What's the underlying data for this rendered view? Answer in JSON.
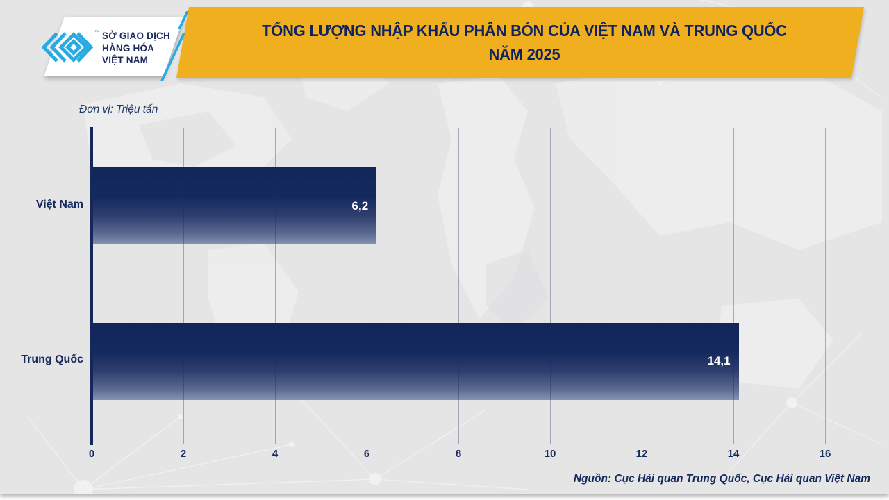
{
  "header": {
    "title_line1": "TỔNG LƯỢNG NHẬP KHẨU PHÂN BÓN CỦA VIỆT NAM VÀ TRUNG QUỐC",
    "title_line2": "NĂM 2025",
    "logo": {
      "tm": "™",
      "org_line1": "SỞ GIAO DỊCH",
      "org_line2": "HÀNG HÓA",
      "org_line3": "VIỆT NAM"
    }
  },
  "chart_data": {
    "type": "bar",
    "orientation": "horizontal",
    "title": "TỔNG LƯỢNG NHẬP KHẨU PHÂN BÓN CỦA VIỆT NAM VÀ TRUNG QUỐC NĂM 2025",
    "unit_label": "Đơn vị: Triệu tấn",
    "categories": [
      "Việt Nam",
      "Trung Quốc"
    ],
    "values": [
      6.2,
      14.1
    ],
    "value_labels": [
      "6,2",
      "14,1"
    ],
    "x_ticks": [
      0,
      2,
      4,
      6,
      8,
      10,
      12,
      14,
      16
    ],
    "xlim": [
      0,
      16
    ],
    "grid": true,
    "legend": false
  },
  "footer": {
    "source": "Nguồn: Cục Hải quan Trung Quốc, Cục Hải quan Việt Nam"
  },
  "colors": {
    "background": "#e5e5e6",
    "accent_yellow": "#f0af1e",
    "navy": "#14285c",
    "cyan": "#29abe2",
    "bar_gradient_top": "#12255a",
    "bar_gradient_bottom": "#8793b1",
    "value_text": "#ffffff"
  }
}
